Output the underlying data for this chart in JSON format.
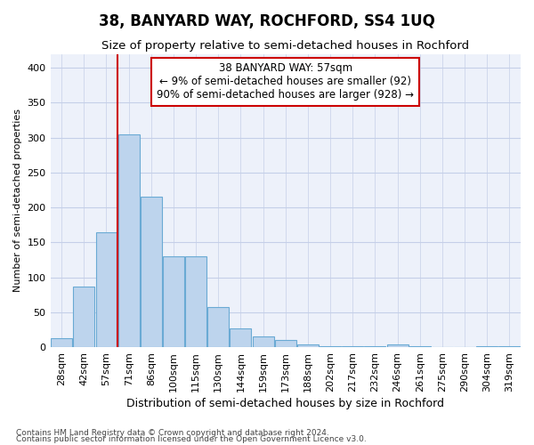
{
  "title": "38, BANYARD WAY, ROCHFORD, SS4 1UQ",
  "subtitle": "Size of property relative to semi-detached houses in Rochford",
  "xlabel": "Distribution of semi-detached houses by size in Rochford",
  "ylabel": "Number of semi-detached properties",
  "footnote1": "Contains HM Land Registry data © Crown copyright and database right 2024.",
  "footnote2": "Contains public sector information licensed under the Open Government Licence v3.0.",
  "annotation_title": "38 BANYARD WAY: 57sqm",
  "annotation_line1": "← 9% of semi-detached houses are smaller (92)",
  "annotation_line2": "90% of semi-detached houses are larger (928) →",
  "bar_labels": [
    "28sqm",
    "42sqm",
    "57sqm",
    "71sqm",
    "86sqm",
    "100sqm",
    "115sqm",
    "130sqm",
    "144sqm",
    "159sqm",
    "173sqm",
    "188sqm",
    "202sqm",
    "217sqm",
    "232sqm",
    "246sqm",
    "261sqm",
    "275sqm",
    "290sqm",
    "304sqm",
    "319sqm"
  ],
  "bar_values": [
    13,
    87,
    165,
    305,
    215,
    130,
    130,
    58,
    27,
    15,
    10,
    4,
    2,
    2,
    2,
    4,
    1,
    0,
    0,
    2,
    2
  ],
  "bar_color": "#bdd4ed",
  "bar_edge_color": "#6aaad4",
  "highlight_line_color": "#cc0000",
  "highlight_bar_index": 2,
  "ylim": [
    0,
    420
  ],
  "yticks": [
    0,
    50,
    100,
    150,
    200,
    250,
    300,
    350,
    400
  ],
  "annotation_box_color": "#cc0000",
  "background_color": "#edf1fa",
  "grid_color": "#c5cfe8",
  "title_fontsize": 12,
  "subtitle_fontsize": 9.5,
  "xlabel_fontsize": 9,
  "ylabel_fontsize": 8,
  "tick_fontsize": 8,
  "annot_fontsize": 8.5
}
